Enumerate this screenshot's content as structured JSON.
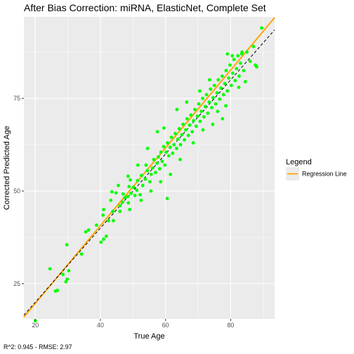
{
  "chart_data": {
    "type": "scatter",
    "title": "After Bias Correction: miRNA, ElasticNet, Complete Set",
    "xlabel": "True Age",
    "ylabel": "Corrected Predicted Age",
    "xlim": [
      16.5,
      93.5
    ],
    "ylim": [
      15.5,
      97.0
    ],
    "xticks": [
      20,
      40,
      60,
      80
    ],
    "yticks": [
      25,
      50,
      75
    ],
    "grid": true,
    "caption": "R^2: 0.945 - RMSE: 2.97",
    "legend": {
      "title": "Legend",
      "position": "right",
      "entries": [
        {
          "label": "Regression Line",
          "color": "#FFA500",
          "style": "line"
        }
      ]
    },
    "lines": [
      {
        "kind": "regression",
        "color": "#FFA500",
        "style": "solid",
        "x": [
          16.5,
          93.5
        ],
        "y": [
          16.0,
          96.8
        ]
      },
      {
        "kind": "identity",
        "color": "#000000",
        "style": "dashed",
        "x": [
          16.5,
          93.5
        ],
        "y": [
          16.5,
          93.5
        ]
      }
    ],
    "point_color": "#00FF00",
    "points": [
      [
        20.0,
        15.0
      ],
      [
        24.5,
        29.0
      ],
      [
        26.2,
        23.0
      ],
      [
        26.8,
        23.2
      ],
      [
        28.5,
        27.5
      ],
      [
        29.7,
        35.5
      ],
      [
        29.4,
        25.5
      ],
      [
        29.8,
        26.2
      ],
      [
        30.3,
        28.5
      ],
      [
        34.2,
        33.0
      ],
      [
        35.5,
        39.0
      ],
      [
        36.4,
        39.5
      ],
      [
        38.8,
        40.8
      ],
      [
        40.2,
        36.2
      ],
      [
        41.0,
        37.0
      ],
      [
        41.8,
        37.8
      ],
      [
        40.8,
        43.5
      ],
      [
        41.0,
        45.0
      ],
      [
        42.5,
        42.0
      ],
      [
        43.8,
        44.5
      ],
      [
        43.2,
        47.5
      ],
      [
        44.8,
        49.5
      ],
      [
        43.5,
        49.8
      ],
      [
        46.0,
        46.0
      ],
      [
        46.8,
        47.0
      ],
      [
        47.5,
        48.2
      ],
      [
        48.6,
        46.8
      ],
      [
        47.0,
        49.2
      ],
      [
        48.4,
        48.5
      ],
      [
        49.4,
        49.4
      ],
      [
        48.8,
        51.2
      ],
      [
        49.2,
        53.0
      ],
      [
        50.6,
        48.8
      ],
      [
        50.2,
        51.0
      ],
      [
        51.2,
        50.2
      ],
      [
        51.4,
        52.8
      ],
      [
        52.2,
        49.0
      ],
      [
        52.6,
        54.2
      ],
      [
        53.0,
        51.5
      ],
      [
        53.8,
        53.2
      ],
      [
        54.4,
        55.5
      ],
      [
        54.0,
        57.0
      ],
      [
        55.2,
        52.5
      ],
      [
        55.6,
        54.5
      ],
      [
        56.0,
        56.2
      ],
      [
        56.4,
        58.5
      ],
      [
        56.9,
        55.0
      ],
      [
        57.4,
        57.5
      ],
      [
        57.8,
        59.2
      ],
      [
        58.2,
        56.0
      ],
      [
        58.6,
        60.5
      ],
      [
        59.0,
        58.0
      ],
      [
        59.4,
        62.0
      ],
      [
        59.8,
        57.0
      ],
      [
        60.2,
        60.5
      ],
      [
        60.6,
        63.0
      ],
      [
        61.0,
        59.5
      ],
      [
        61.4,
        61.8
      ],
      [
        61.8,
        64.5
      ],
      [
        62.2,
        60.2
      ],
      [
        62.6,
        62.5
      ],
      [
        63.0,
        65.5
      ],
      [
        63.4,
        61.5
      ],
      [
        63.8,
        64.0
      ],
      [
        64.2,
        66.8
      ],
      [
        64.6,
        62.5
      ],
      [
        65.0,
        65.2
      ],
      [
        65.4,
        68.0
      ],
      [
        65.8,
        63.8
      ],
      [
        66.2,
        66.5
      ],
      [
        66.6,
        69.5
      ],
      [
        67.0,
        65.0
      ],
      [
        67.4,
        67.8
      ],
      [
        67.8,
        70.5
      ],
      [
        68.2,
        66.0
      ],
      [
        68.6,
        69.0
      ],
      [
        69.0,
        72.0
      ],
      [
        69.4,
        67.5
      ],
      [
        69.8,
        70.2
      ],
      [
        70.2,
        73.5
      ],
      [
        70.6,
        68.8
      ],
      [
        71.0,
        71.5
      ],
      [
        71.4,
        75.0
      ],
      [
        71.8,
        70.0
      ],
      [
        72.2,
        72.8
      ],
      [
        72.6,
        76.0
      ],
      [
        73.0,
        71.0
      ],
      [
        73.4,
        74.0
      ],
      [
        73.8,
        77.5
      ],
      [
        74.2,
        72.5
      ],
      [
        74.6,
        75.2
      ],
      [
        75.0,
        78.5
      ],
      [
        75.4,
        73.5
      ],
      [
        75.8,
        76.5
      ],
      [
        76.2,
        80.0
      ],
      [
        76.6,
        74.8
      ],
      [
        77.0,
        77.8
      ],
      [
        77.4,
        81.0
      ],
      [
        77.8,
        76.0
      ],
      [
        78.2,
        79.0
      ],
      [
        78.6,
        82.5
      ],
      [
        79.0,
        77.0
      ],
      [
        79.4,
        80.5
      ],
      [
        79.8,
        84.0
      ],
      [
        80.2,
        78.5
      ],
      [
        80.6,
        81.8
      ],
      [
        81.0,
        85.5
      ],
      [
        81.4,
        79.8
      ],
      [
        81.8,
        83.0
      ],
      [
        82.2,
        86.5
      ],
      [
        82.6,
        81.0
      ],
      [
        83.0,
        84.5
      ],
      [
        83.4,
        87.0
      ],
      [
        84.0,
        82.5
      ],
      [
        85.0,
        87.5
      ],
      [
        86.0,
        85.0
      ],
      [
        87.0,
        89.0
      ],
      [
        87.6,
        84.0
      ],
      [
        88.0,
        83.5
      ],
      [
        89.5,
        94.0
      ],
      [
        79.0,
        87.0
      ],
      [
        80.5,
        86.5
      ],
      [
        83.5,
        87.5
      ],
      [
        73.5,
        80.0
      ],
      [
        70.5,
        77.0
      ],
      [
        66.5,
        74.0
      ],
      [
        63.5,
        72.0
      ],
      [
        59.5,
        67.0
      ],
      [
        57.5,
        66.0
      ],
      [
        60.5,
        48.0
      ],
      [
        74.5,
        68.0
      ],
      [
        77.5,
        69.5
      ],
      [
        71.5,
        66.5
      ],
      [
        68.5,
        63.0
      ],
      [
        64.5,
        58.5
      ],
      [
        61.5,
        54.5
      ],
      [
        58.5,
        52.5
      ],
      [
        55.5,
        50.0
      ],
      [
        52.5,
        47.5
      ],
      [
        49.0,
        45.0
      ],
      [
        46.0,
        44.5
      ],
      [
        44.0,
        42.0
      ],
      [
        54.5,
        61.5
      ],
      [
        51.5,
        57.0
      ],
      [
        48.5,
        54.0
      ],
      [
        45.5,
        51.5
      ],
      [
        76.0,
        71.5
      ],
      [
        78.5,
        73.0
      ],
      [
        82.5,
        78.0
      ],
      [
        84.5,
        79.5
      ]
    ]
  }
}
